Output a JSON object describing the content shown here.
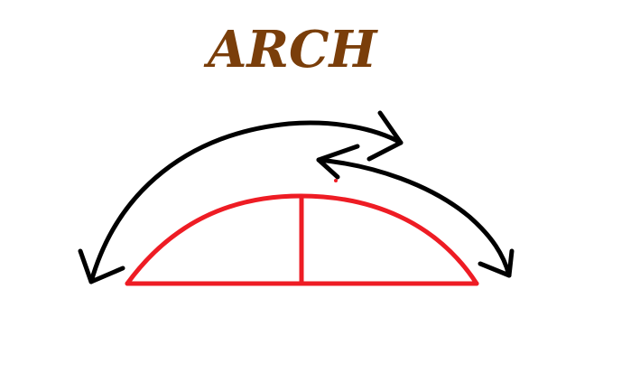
{
  "diagram": {
    "title": "ARCH",
    "colors": {
      "title": "#7a3e0a",
      "arch_structure": "#ee1c24",
      "arrows": "#000000",
      "background": "#ffffff"
    },
    "elements": [
      {
        "name": "arch-curve",
        "kind": "red arch"
      },
      {
        "name": "arch-base-line",
        "kind": "red base line"
      },
      {
        "name": "arch-center-post",
        "kind": "red vertical post"
      },
      {
        "name": "left-arrow-curve",
        "kind": "black curved double arrow"
      },
      {
        "name": "right-arrow-curve",
        "kind": "black curved double arrow"
      }
    ]
  }
}
